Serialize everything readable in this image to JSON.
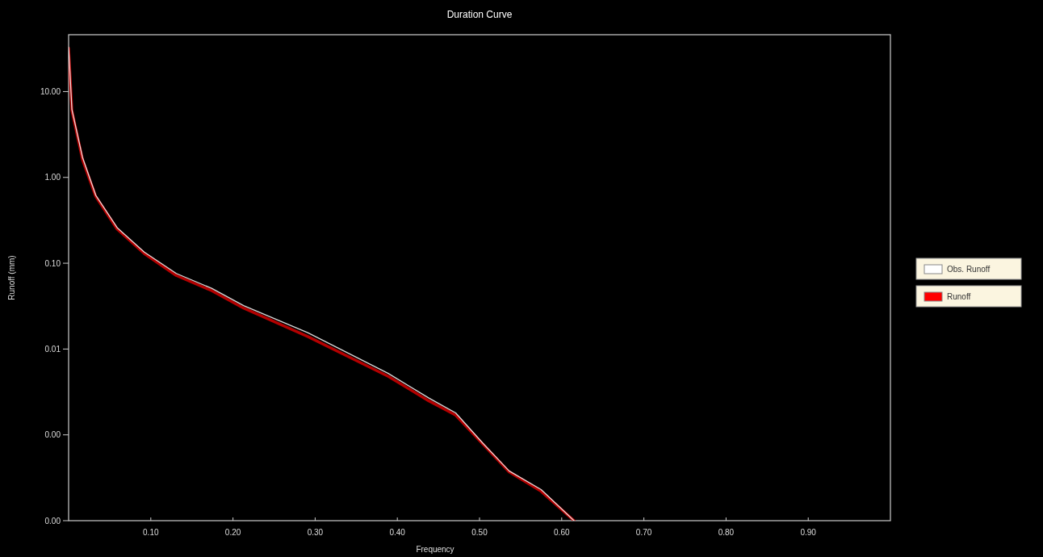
{
  "chart_data": {
    "type": "line",
    "title": "Duration Curve",
    "xlabel": "Frequency",
    "ylabel": "Runoff (mm)",
    "log": "y",
    "grid": false,
    "legend": "right",
    "marker": "none",
    "line_style": "solid",
    "xlim": [
      0,
      1
    ],
    "xticks": [
      {
        "value": 0.1,
        "label": "0.10"
      },
      {
        "value": 0.2,
        "label": "0.20"
      },
      {
        "value": 0.3,
        "label": "0.30"
      },
      {
        "value": 0.4,
        "label": "0.40"
      },
      {
        "value": 0.5,
        "label": "0.50"
      },
      {
        "value": 0.6,
        "label": "0.60"
      },
      {
        "value": 0.7,
        "label": "0.70"
      },
      {
        "value": 0.8,
        "label": "0.80"
      },
      {
        "value": 0.9,
        "label": "0.90"
      }
    ],
    "ylim": [
      0.0001,
      46
    ],
    "yticks": [
      {
        "value": 10,
        "label": "10.00"
      },
      {
        "value": 1,
        "label": "1.00"
      },
      {
        "value": 0.1,
        "label": "0.10"
      },
      {
        "value": 0.01,
        "label": "0.01"
      },
      {
        "value": 0.001,
        "label": "0.00"
      },
      {
        "value": 0.0001,
        "label": "0.00"
      }
    ],
    "x": [
      0,
      0.004,
      0.017,
      0.033,
      0.059,
      0.092,
      0.131,
      0.174,
      0.213,
      0.291,
      0.389,
      0.438,
      0.471,
      0.504,
      0.536,
      0.575,
      0.615
    ],
    "series": [
      {
        "name": "Obs. Runoff",
        "color": "#ffffff",
        "values": [
          33,
          6.2,
          1.7,
          0.62,
          0.26,
          0.135,
          0.076,
          0.051,
          0.032,
          0.0155,
          0.0052,
          0.0027,
          0.0018,
          0.0008,
          0.00038,
          0.00023,
          0.0001
        ]
      },
      {
        "name": "Runoff",
        "color": "#ff0000",
        "values": [
          32,
          6,
          1.6,
          0.6,
          0.25,
          0.13,
          0.072,
          0.048,
          0.03,
          0.014,
          0.0048,
          0.0025,
          0.0017,
          0.00078,
          0.00037,
          0.00022,
          0.0001
        ]
      }
    ]
  }
}
